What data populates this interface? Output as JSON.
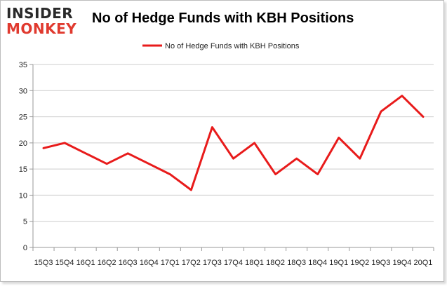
{
  "logo": {
    "top": "INSIDER",
    "bottom": "MONKEY"
  },
  "colors": {
    "series": "#e81b1b",
    "grid": "#cccccc",
    "axis": "#999999",
    "logo_accent": "#e03a2f"
  },
  "chart_data": {
    "type": "line",
    "title": "No of Hedge Funds with KBH Positions",
    "xlabel": "",
    "ylabel": "",
    "ylim": [
      0,
      35
    ],
    "yticks": [
      0,
      5,
      10,
      15,
      20,
      25,
      30,
      35
    ],
    "grid": true,
    "legend": "top-center",
    "categories": [
      "15Q3",
      "15Q4",
      "16Q1",
      "16Q2",
      "16Q3",
      "16Q4",
      "17Q1",
      "17Q2",
      "17Q3",
      "17Q4",
      "18Q1",
      "18Q2",
      "18Q3",
      "18Q4",
      "19Q1",
      "19Q2",
      "19Q3",
      "19Q4",
      "20Q1"
    ],
    "series": [
      {
        "name": "No of Hedge Funds with KBH Positions",
        "values": [
          19,
          20,
          18,
          16,
          18,
          16,
          14,
          11,
          23,
          17,
          20,
          14,
          17,
          14,
          21,
          17,
          26,
          29,
          25
        ]
      }
    ]
  }
}
